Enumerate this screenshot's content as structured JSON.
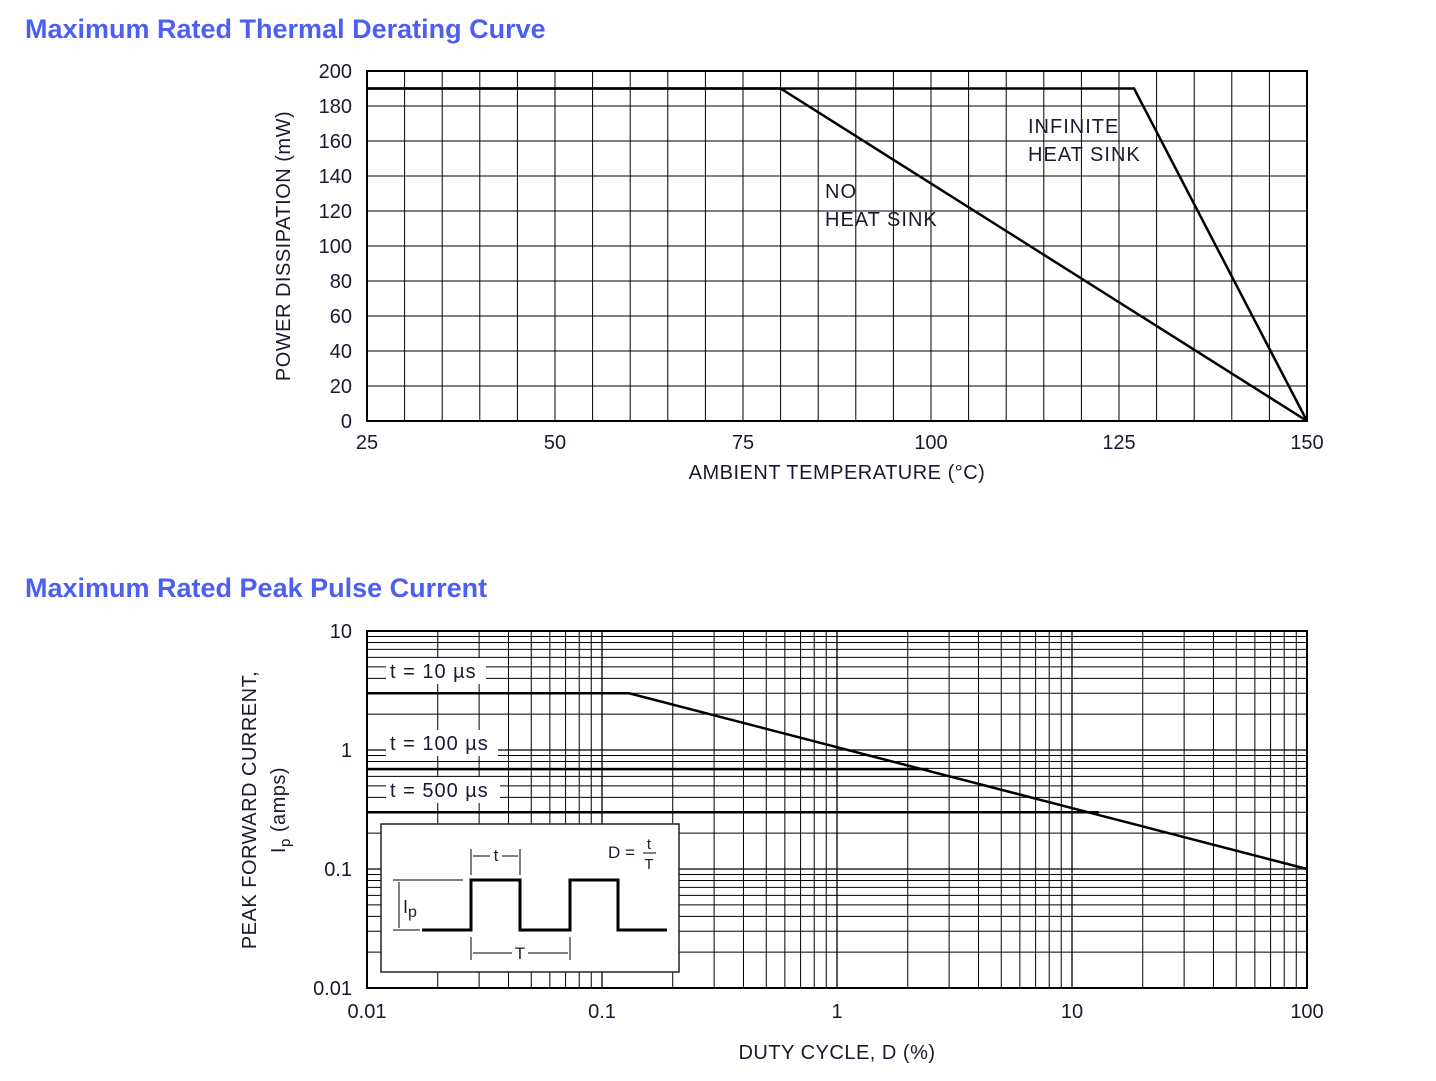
{
  "chart_data": [
    {
      "type": "line",
      "title": "Maximum Rated Thermal Derating Curve",
      "xlabel": "AMBIENT TEMPERATURE (°C)",
      "ylabel": "POWER DISSIPATION (mW)",
      "xlim": [
        25,
        150
      ],
      "ylim": [
        0,
        200
      ],
      "xticks": [
        "25",
        "50",
        "75",
        "100",
        "125",
        "150"
      ],
      "yticks": [
        "0",
        "20",
        "40",
        "60",
        "80",
        "100",
        "120",
        "140",
        "160",
        "180",
        "200"
      ],
      "grid": true,
      "series": [
        {
          "name": "NO HEAT SINK",
          "x": [
            25,
            80,
            150
          ],
          "y": [
            190,
            190,
            0
          ]
        },
        {
          "name": "INFINITE HEAT SINK",
          "x": [
            25,
            127,
            150
          ],
          "y": [
            190,
            190,
            0
          ]
        }
      ],
      "annotations": {
        "infinite_1": "INFINITE",
        "infinite_2": "HEAT SINK",
        "no_1": "NO",
        "no_2": "HEAT SINK"
      }
    },
    {
      "type": "line",
      "title": "Maximum Rated Peak Pulse Current",
      "xlabel": "DUTY CYCLE, D (%)",
      "ylabel_line1": "PEAK FORWARD CURRENT,",
      "ylabel_line2_main": "I",
      "ylabel_line2_sub": "p",
      "ylabel_line2_rest": " (amps)",
      "xscale": "log",
      "yscale": "log",
      "xlim": [
        0.01,
        100
      ],
      "ylim": [
        0.01,
        10
      ],
      "xticks": [
        "0.01",
        "0.1",
        "1",
        "10",
        "100"
      ],
      "yticks": [
        "0.01",
        "0.1",
        "1",
        "10"
      ],
      "grid": true,
      "series": [
        {
          "name": "t = 10 µs",
          "x": [
            0.01,
            0.13,
            100
          ],
          "y": [
            3.0,
            3.0,
            0.1
          ]
        },
        {
          "name": "t = 100 µs",
          "x": [
            0.01,
            2.45
          ],
          "y": [
            0.69,
            0.69
          ]
        },
        {
          "name": "t = 500 µs",
          "x": [
            0.01,
            13
          ],
          "y": [
            0.3,
            0.3
          ]
        }
      ],
      "inset": {
        "formula_lhs": "D = ",
        "formula_num": "t",
        "formula_den": "T",
        "t_label": "t",
        "T_label": "T",
        "ip_main": "I",
        "ip_sub": "p"
      }
    }
  ]
}
